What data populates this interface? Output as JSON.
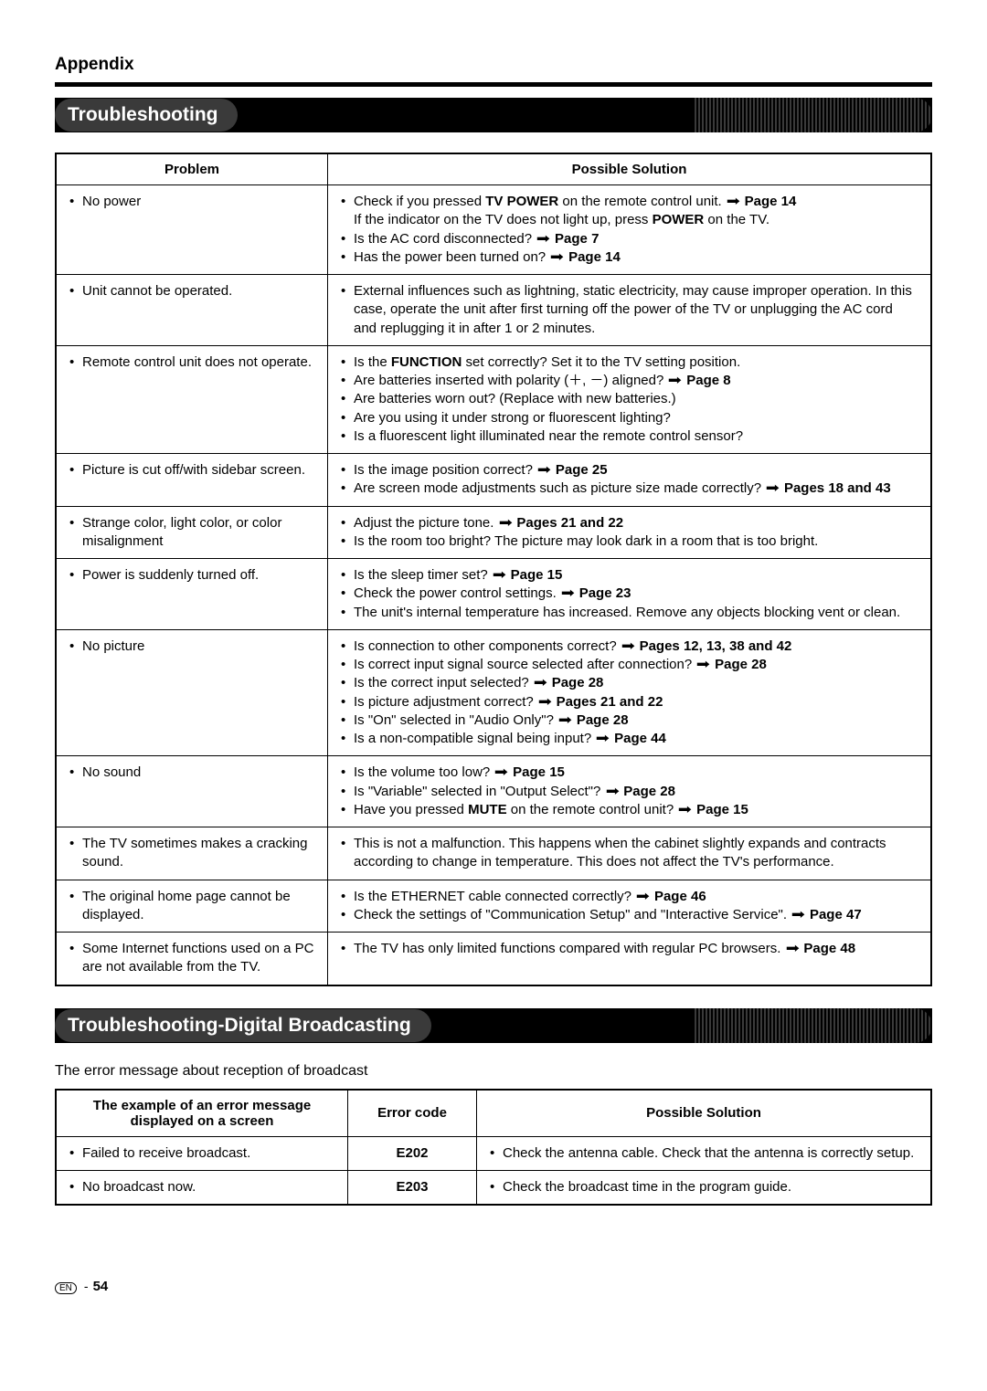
{
  "appendix_label": "Appendix",
  "section1_title": "Troubleshooting",
  "section2_title": "Troubleshooting-Digital Broadcasting",
  "intro2": "The error message about reception of broadcast",
  "table1": {
    "headers": {
      "problem": "Problem",
      "solution": "Possible Solution"
    },
    "rows": [
      {
        "problem": "No power",
        "solutions": [
          "Check if you pressed <b>TV POWER</b> on the remote control unit. <span class='arrow'>➡</span> <b>Page 14</b><br>If the indicator on the TV does not light up, press <b>POWER</b> on the TV.",
          "Is the AC cord disconnected? <span class='arrow'>➡</span> <b>Page 7</b>",
          "Has the power been turned on? <span class='arrow'>➡</span> <b>Page 14</b>"
        ]
      },
      {
        "problem": "Unit cannot be operated.",
        "solutions": [
          "External influences such as lightning, static electricity, may cause improper operation. In this case, operate the unit after first turning off the power of the TV or unplugging the AC cord and replugging it in after 1 or 2 minutes."
        ]
      },
      {
        "problem": "Remote control unit does not operate.",
        "solutions": [
          "Is the <b>FUNCTION</b> set correctly? Set it to the TV setting position.",
          "Are batteries inserted with polarity (＋, －) aligned? <span class='arrow'>➡</span> <b>Page 8</b>",
          "Are batteries worn out? (Replace with new batteries.)",
          "Are you using it under strong or fluorescent lighting?",
          "Is a fluorescent light illuminated near the remote control sensor?"
        ]
      },
      {
        "problem": "Picture is cut off/with sidebar screen.",
        "solutions": [
          "Is the image position correct? <span class='arrow'>➡</span> <b>Page 25</b>",
          "Are screen mode adjustments such as picture size made correctly? <span class='arrow'>➡</span> <b>Pages 18 and 43</b>"
        ]
      },
      {
        "problem": "Strange color, light color, or color misalignment",
        "solutions": [
          "Adjust the picture tone. <span class='arrow'>➡</span> <b>Pages 21 and 22</b>",
          "Is the room too bright? The picture may look dark in a room that is too bright."
        ]
      },
      {
        "problem": "Power is suddenly turned off.",
        "solutions": [
          "Is the sleep timer set? <span class='arrow'>➡</span> <b>Page 15</b>",
          "Check the power control settings. <span class='arrow'>➡</span> <b>Page 23</b>",
          "The unit's internal temperature has increased. Remove any objects blocking vent or clean."
        ]
      },
      {
        "problem": "No picture",
        "solutions": [
          "Is connection to other components correct? <span class='arrow'>➡</span> <b>Pages 12, 13, 38 and 42</b>",
          "Is correct input signal source selected after connection? <span class='arrow'>➡</span> <b>Page 28</b>",
          "Is the correct input selected? <span class='arrow'>➡</span> <b>Page 28</b>",
          "Is picture adjustment correct? <span class='arrow'>➡</span> <b>Pages 21 and 22</b>",
          "Is \"On\" selected in \"Audio Only\"? <span class='arrow'>➡</span> <b>Page 28</b>",
          "Is a non-compatible signal being input? <span class='arrow'>➡</span> <b>Page 44</b>"
        ]
      },
      {
        "problem": "No sound",
        "solutions": [
          "Is the volume too low? <span class='arrow'>➡</span> <b>Page 15</b>",
          "Is \"Variable\" selected in \"Output Select\"? <span class='arrow'>➡</span> <b>Page 28</b>",
          "Have you pressed <b>MUTE</b> on the remote control unit? <span class='arrow'>➡</span> <b>Page 15</b>"
        ]
      },
      {
        "problem": "The TV sometimes makes a cracking sound.",
        "solutions": [
          "This is not a malfunction. This happens when the cabinet slightly expands and contracts according to change in temperature. This does not affect the TV's performance."
        ]
      },
      {
        "problem": "The original home page cannot be displayed.",
        "solutions": [
          "Is the ETHERNET cable connected correctly? <span class='arrow'>➡</span> <b>Page 46</b>",
          "Check the settings of \"Communication Setup\" and \"Interactive Service\".  <span class='arrow'>➡</span> <b>Page 47</b>"
        ]
      },
      {
        "problem": "Some Internet functions used on a PC are not available from the TV.",
        "solutions": [
          "The TV has only limited functions compared with regular PC browsers.  <span class='arrow'>➡</span> <b>Page 48</b>"
        ]
      }
    ]
  },
  "table2": {
    "headers": {
      "errmsg": "The example of an error message displayed on a screen",
      "errcode": "Error code",
      "solution": "Possible Solution"
    },
    "rows": [
      {
        "errmsg": "Failed to receive broadcast.",
        "errcode": "E202",
        "solutions": [
          "Check the antenna cable. Check that the antenna is correctly setup."
        ]
      },
      {
        "errmsg": "No broadcast now.",
        "errcode": "E203",
        "solutions": [
          "Check the broadcast time in the program guide."
        ]
      }
    ]
  },
  "footer": {
    "lang": "EN",
    "page": "54"
  }
}
